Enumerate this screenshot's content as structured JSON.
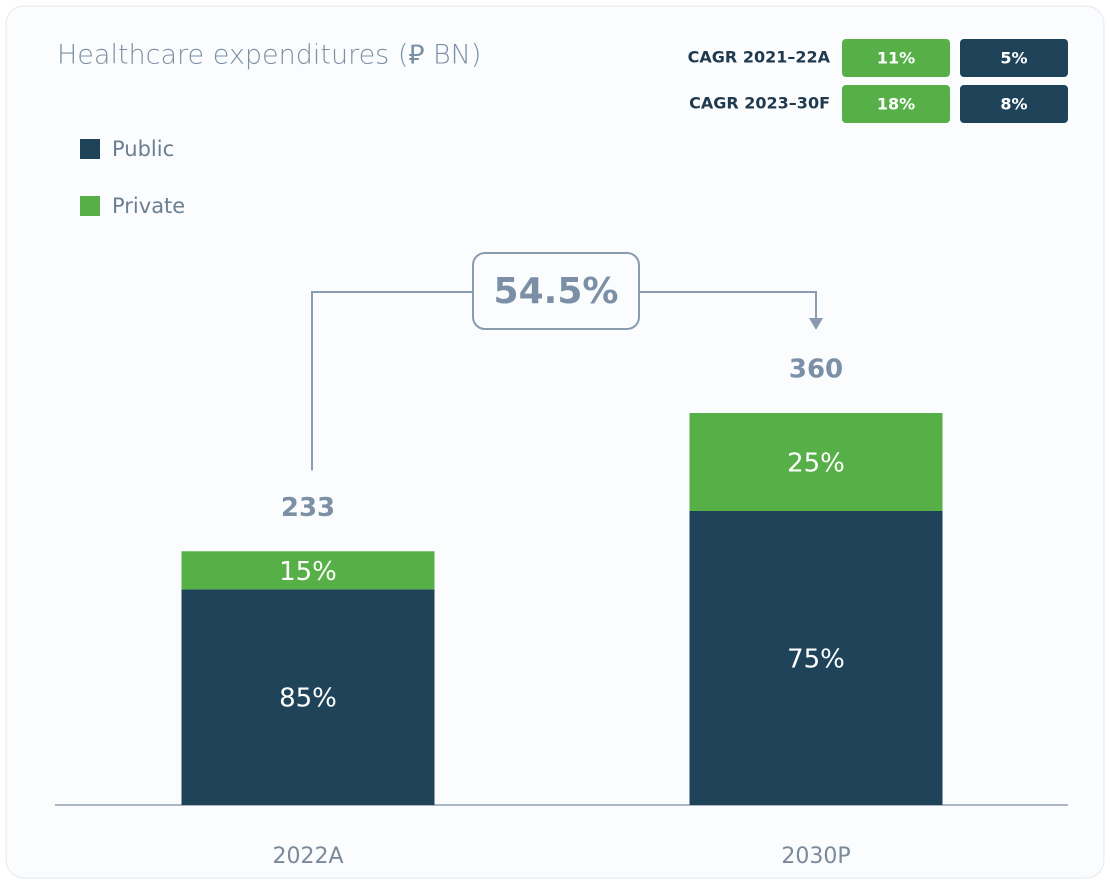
{
  "chart_data": {
    "type": "stacked_bar_percent",
    "title": "Healthcare expenditures (⃁ BN)",
    "categories": [
      "2022A",
      "2030P"
    ],
    "totals": [
      233,
      360
    ],
    "series": [
      {
        "name": "Public",
        "color": "#1f4359",
        "values": [
          85,
          75
        ],
        "value_labels": [
          "85%",
          "75%"
        ]
      },
      {
        "name": "Private",
        "color": "#56b047",
        "values": [
          15,
          25
        ],
        "value_labels": [
          "15%",
          "25%"
        ]
      }
    ],
    "growth": {
      "value": 54.5,
      "label": "54.5%"
    },
    "cagr": [
      {
        "label": "CAGR 2021–22A",
        "values": [
          11,
          5
        ],
        "value_labels": [
          "11%",
          "5%"
        ]
      },
      {
        "label": "CAGR 2023–30F",
        "values": [
          18,
          8
        ],
        "value_labels": [
          "18%",
          "8%"
        ]
      }
    ]
  }
}
